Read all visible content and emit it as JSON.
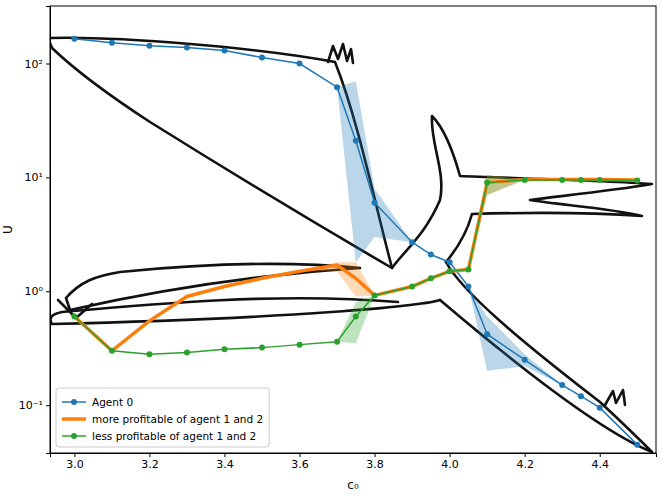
{
  "chart_data": {
    "type": "line",
    "x": [
      3.0,
      3.1,
      3.2,
      3.3,
      3.4,
      3.5,
      3.6,
      3.7,
      3.75,
      3.8,
      3.9,
      3.95,
      4.0,
      4.05,
      4.1,
      4.2,
      4.3,
      4.35,
      4.4,
      4.5
    ],
    "xlim": [
      2.935,
      4.55
    ],
    "ylim": [
      0.038,
      320
    ],
    "log": "y",
    "grid": false,
    "legend": "lower left",
    "x_label": "c₀",
    "y_label": "U",
    "xticks": [
      {
        "value": 3,
        "label": "3.0"
      },
      3.2,
      3.4,
      3.6,
      3.8,
      {
        "value": 4,
        "label": "4.0"
      },
      4.2,
      4.4
    ],
    "yticks": [
      {
        "value": 0.1,
        "label": "10⁻¹"
      },
      {
        "value": 1,
        "label": "10⁰"
      },
      {
        "value": 10,
        "label": "10¹"
      },
      {
        "value": 100,
        "label": "10²"
      }
    ],
    "series": [
      {
        "name": "Agent 0",
        "color": "#1f77b4",
        "marker": "o",
        "values": [
          165,
          152,
          143,
          138,
          130,
          113,
          100,
          62,
          21,
          6,
          2.7,
          2.1,
          1.8,
          1.1,
          0.42,
          0.25,
          0.15,
          0.12,
          0.095,
          0.045
        ],
        "lower": [
          165,
          152,
          143,
          138,
          130,
          113,
          100,
          62,
          1.8,
          3,
          2.7,
          2.1,
          1.8,
          1.1,
          0.2,
          0.22,
          0.15,
          0.12,
          0.095,
          0.045
        ],
        "upper": [
          165,
          152,
          143,
          138,
          130,
          113,
          100,
          62,
          70,
          8,
          2.7,
          2.1,
          1.8,
          1.1,
          0.6,
          0.28,
          0.15,
          0.12,
          0.095,
          0.045
        ]
      },
      {
        "name": "more profitable of agent 1 and 2",
        "color": "#ff7f0e",
        "marker": "none",
        "values": [
          0.6,
          0.3,
          0.55,
          0.9,
          1.1,
          1.3,
          1.5,
          1.7,
          1.3,
          0.92,
          1.1,
          1.3,
          1.5,
          1.55,
          9.0,
          9.6,
          9.6,
          9.6,
          9.6,
          9.5
        ],
        "lower": [
          0.6,
          0.3,
          0.55,
          0.9,
          1.1,
          1.3,
          1.5,
          1.5,
          0.9,
          0.92,
          1.1,
          1.3,
          1.5,
          1.55,
          7,
          9.6,
          9.6,
          9.6,
          9.6,
          9.5
        ],
        "upper": [
          0.6,
          0.3,
          0.55,
          0.9,
          1.1,
          1.3,
          1.5,
          1.8,
          1.8,
          0.92,
          1.1,
          1.3,
          1.5,
          1.55,
          10.5,
          9.6,
          9.6,
          9.6,
          9.6,
          9.5
        ]
      },
      {
        "name": "less profitable of agent 1 and 2",
        "color": "#2ca02c",
        "marker": "o",
        "values": [
          0.6,
          0.3,
          0.28,
          0.29,
          0.31,
          0.32,
          0.34,
          0.36,
          0.6,
          0.92,
          1.1,
          1.3,
          1.5,
          1.55,
          9.0,
          9.5,
          9.5,
          9.5,
          9.5,
          9.4
        ],
        "lower": [
          0.6,
          0.3,
          0.28,
          0.29,
          0.31,
          0.32,
          0.34,
          0.36,
          0.35,
          0.92,
          1.1,
          1.3,
          1.5,
          1.55,
          7,
          9.5,
          9.5,
          9.5,
          9.5,
          9.4
        ],
        "upper": [
          0.6,
          0.3,
          0.28,
          0.29,
          0.31,
          0.32,
          0.34,
          0.36,
          0.8,
          0.92,
          1.1,
          1.3,
          1.5,
          1.55,
          10.5,
          9.5,
          9.5,
          9.5,
          9.5,
          9.4
        ]
      }
    ]
  }
}
